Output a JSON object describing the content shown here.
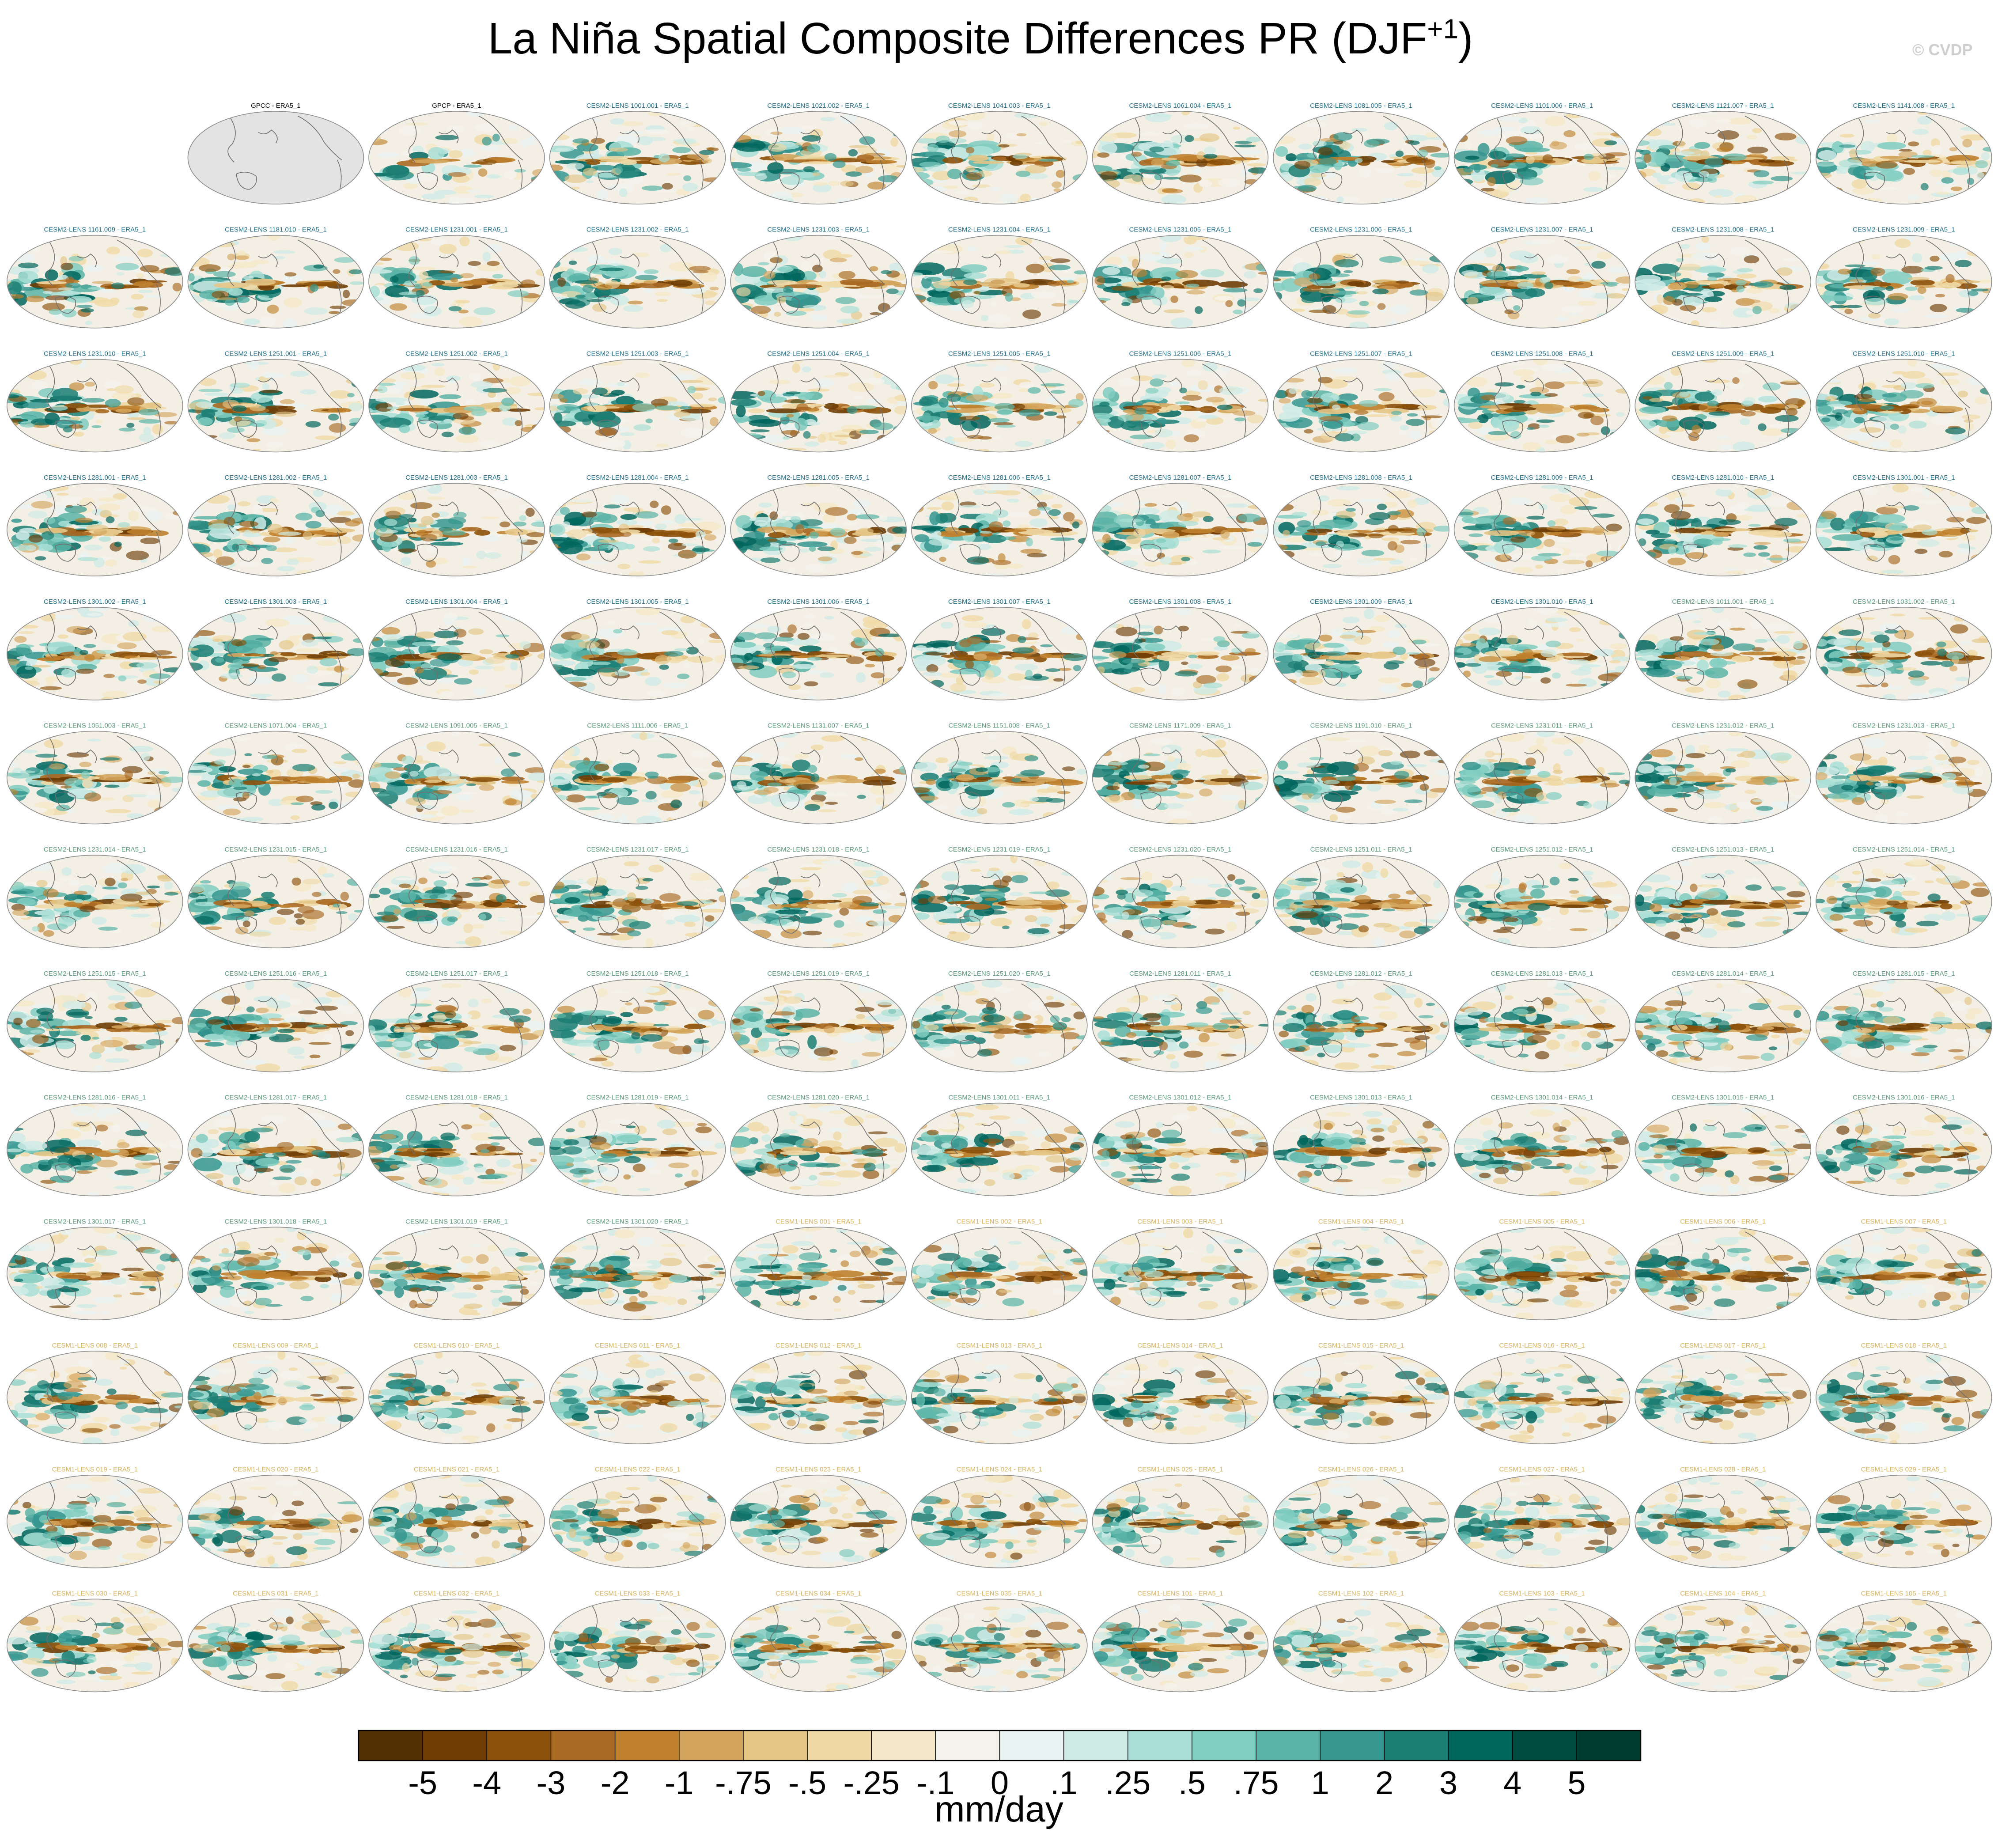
{
  "title": "La Niña Spatial Composite Differences PR (DJF",
  "title_sup": "+1",
  "title_close": ")",
  "watermark": "© CVDP",
  "colors": {
    "obs_label": "#000000",
    "cesm2_label": "#1f6f8b",
    "cesm2_smbb_label": "#5a9a7a",
    "cesm1_label": "#d8b25c",
    "land": "#f4efe4",
    "coast": "#6e6e6e"
  },
  "panels": [
    {
      "label": "",
      "kind": "empty"
    },
    {
      "label": "GPCC - ERA5_1",
      "kind": "obs-land"
    },
    {
      "label": "GPCP - ERA5_1",
      "kind": "obs"
    },
    {
      "label": "CESM2-LENS 1001.001 - ERA5_1",
      "kind": "cesm2"
    },
    {
      "label": "CESM2-LENS 1021.002 - ERA5_1",
      "kind": "cesm2"
    },
    {
      "label": "CESM2-LENS 1041.003 - ERA5_1",
      "kind": "cesm2"
    },
    {
      "label": "CESM2-LENS 1061.004 - ERA5_1",
      "kind": "cesm2"
    },
    {
      "label": "CESM2-LENS 1081.005 - ERA5_1",
      "kind": "cesm2"
    },
    {
      "label": "CESM2-LENS 1101.006 - ERA5_1",
      "kind": "cesm2"
    },
    {
      "label": "CESM2-LENS 1121.007 - ERA5_1",
      "kind": "cesm2"
    },
    {
      "label": "CESM2-LENS 1141.008 - ERA5_1",
      "kind": "cesm2"
    },
    {
      "label": "CESM2-LENS 1161.009 - ERA5_1",
      "kind": "cesm2"
    },
    {
      "label": "CESM2-LENS 1181.010 - ERA5_1",
      "kind": "cesm2"
    },
    {
      "label": "CESM2-LENS 1231.001 - ERA5_1",
      "kind": "cesm2"
    },
    {
      "label": "CESM2-LENS 1231.002 - ERA5_1",
      "kind": "cesm2"
    },
    {
      "label": "CESM2-LENS 1231.003 - ERA5_1",
      "kind": "cesm2"
    },
    {
      "label": "CESM2-LENS 1231.004 - ERA5_1",
      "kind": "cesm2"
    },
    {
      "label": "CESM2-LENS 1231.005 - ERA5_1",
      "kind": "cesm2"
    },
    {
      "label": "CESM2-LENS 1231.006 - ERA5_1",
      "kind": "cesm2"
    },
    {
      "label": "CESM2-LENS 1231.007 - ERA5_1",
      "kind": "cesm2"
    },
    {
      "label": "CESM2-LENS 1231.008 - ERA5_1",
      "kind": "cesm2"
    },
    {
      "label": "CESM2-LENS 1231.009 - ERA5_1",
      "kind": "cesm2"
    },
    {
      "label": "CESM2-LENS 1231.010 - ERA5_1",
      "kind": "cesm2"
    },
    {
      "label": "CESM2-LENS 1251.001 - ERA5_1",
      "kind": "cesm2"
    },
    {
      "label": "CESM2-LENS 1251.002 - ERA5_1",
      "kind": "cesm2"
    },
    {
      "label": "CESM2-LENS 1251.003 - ERA5_1",
      "kind": "cesm2"
    },
    {
      "label": "CESM2-LENS 1251.004 - ERA5_1",
      "kind": "cesm2"
    },
    {
      "label": "CESM2-LENS 1251.005 - ERA5_1",
      "kind": "cesm2"
    },
    {
      "label": "CESM2-LENS 1251.006 - ERA5_1",
      "kind": "cesm2"
    },
    {
      "label": "CESM2-LENS 1251.007 - ERA5_1",
      "kind": "cesm2"
    },
    {
      "label": "CESM2-LENS 1251.008 - ERA5_1",
      "kind": "cesm2"
    },
    {
      "label": "CESM2-LENS 1251.009 - ERA5_1",
      "kind": "cesm2"
    },
    {
      "label": "CESM2-LENS 1251.010 - ERA5_1",
      "kind": "cesm2"
    },
    {
      "label": "CESM2-LENS 1281.001 - ERA5_1",
      "kind": "cesm2"
    },
    {
      "label": "CESM2-LENS 1281.002 - ERA5_1",
      "kind": "cesm2"
    },
    {
      "label": "CESM2-LENS 1281.003 - ERA5_1",
      "kind": "cesm2"
    },
    {
      "label": "CESM2-LENS 1281.004 - ERA5_1",
      "kind": "cesm2"
    },
    {
      "label": "CESM2-LENS 1281.005 - ERA5_1",
      "kind": "cesm2"
    },
    {
      "label": "CESM2-LENS 1281.006 - ERA5_1",
      "kind": "cesm2"
    },
    {
      "label": "CESM2-LENS 1281.007 - ERA5_1",
      "kind": "cesm2"
    },
    {
      "label": "CESM2-LENS 1281.008 - ERA5_1",
      "kind": "cesm2"
    },
    {
      "label": "CESM2-LENS 1281.009 - ERA5_1",
      "kind": "cesm2"
    },
    {
      "label": "CESM2-LENS 1281.010 - ERA5_1",
      "kind": "cesm2"
    },
    {
      "label": "CESM2-LENS 1301.001 - ERA5_1",
      "kind": "cesm2"
    },
    {
      "label": "CESM2-LENS 1301.002 - ERA5_1",
      "kind": "cesm2"
    },
    {
      "label": "CESM2-LENS 1301.003 - ERA5_1",
      "kind": "cesm2"
    },
    {
      "label": "CESM2-LENS 1301.004 - ERA5_1",
      "kind": "cesm2"
    },
    {
      "label": "CESM2-LENS 1301.005 - ERA5_1",
      "kind": "cesm2"
    },
    {
      "label": "CESM2-LENS 1301.006 - ERA5_1",
      "kind": "cesm2"
    },
    {
      "label": "CESM2-LENS 1301.007 - ERA5_1",
      "kind": "cesm2"
    },
    {
      "label": "CESM2-LENS 1301.008 - ERA5_1",
      "kind": "cesm2"
    },
    {
      "label": "CESM2-LENS 1301.009 - ERA5_1",
      "kind": "cesm2"
    },
    {
      "label": "CESM2-LENS 1301.010 - ERA5_1",
      "kind": "cesm2"
    },
    {
      "label": "CESM2-LENS 1011.001 - ERA5_1",
      "kind": "cesm2-smbb"
    },
    {
      "label": "CESM2-LENS 1031.002 - ERA5_1",
      "kind": "cesm2-smbb"
    },
    {
      "label": "CESM2-LENS 1051.003 - ERA5_1",
      "kind": "cesm2-smbb"
    },
    {
      "label": "CESM2-LENS 1071.004 - ERA5_1",
      "kind": "cesm2-smbb"
    },
    {
      "label": "CESM2-LENS 1091.005 - ERA5_1",
      "kind": "cesm2-smbb"
    },
    {
      "label": "CESM2-LENS 1111.006 - ERA5_1",
      "kind": "cesm2-smbb"
    },
    {
      "label": "CESM2-LENS 1131.007 - ERA5_1",
      "kind": "cesm2-smbb"
    },
    {
      "label": "CESM2-LENS 1151.008 - ERA5_1",
      "kind": "cesm2-smbb"
    },
    {
      "label": "CESM2-LENS 1171.009 - ERA5_1",
      "kind": "cesm2-smbb"
    },
    {
      "label": "CESM2-LENS 1191.010 - ERA5_1",
      "kind": "cesm2-smbb"
    },
    {
      "label": "CESM2-LENS 1231.011 - ERA5_1",
      "kind": "cesm2-smbb"
    },
    {
      "label": "CESM2-LENS 1231.012 - ERA5_1",
      "kind": "cesm2-smbb"
    },
    {
      "label": "CESM2-LENS 1231.013 - ERA5_1",
      "kind": "cesm2-smbb"
    },
    {
      "label": "CESM2-LENS 1231.014 - ERA5_1",
      "kind": "cesm2-smbb"
    },
    {
      "label": "CESM2-LENS 1231.015 - ERA5_1",
      "kind": "cesm2-smbb"
    },
    {
      "label": "CESM2-LENS 1231.016 - ERA5_1",
      "kind": "cesm2-smbb"
    },
    {
      "label": "CESM2-LENS 1231.017 - ERA5_1",
      "kind": "cesm2-smbb"
    },
    {
      "label": "CESM2-LENS 1231.018 - ERA5_1",
      "kind": "cesm2-smbb"
    },
    {
      "label": "CESM2-LENS 1231.019 - ERA5_1",
      "kind": "cesm2-smbb"
    },
    {
      "label": "CESM2-LENS 1231.020 - ERA5_1",
      "kind": "cesm2-smbb"
    },
    {
      "label": "CESM2-LENS 1251.011 - ERA5_1",
      "kind": "cesm2-smbb"
    },
    {
      "label": "CESM2-LENS 1251.012 - ERA5_1",
      "kind": "cesm2-smbb"
    },
    {
      "label": "CESM2-LENS 1251.013 - ERA5_1",
      "kind": "cesm2-smbb"
    },
    {
      "label": "CESM2-LENS 1251.014 - ERA5_1",
      "kind": "cesm2-smbb"
    },
    {
      "label": "CESM2-LENS 1251.015 - ERA5_1",
      "kind": "cesm2-smbb"
    },
    {
      "label": "CESM2-LENS 1251.016 - ERA5_1",
      "kind": "cesm2-smbb"
    },
    {
      "label": "CESM2-LENS 1251.017 - ERA5_1",
      "kind": "cesm2-smbb"
    },
    {
      "label": "CESM2-LENS 1251.018 - ERA5_1",
      "kind": "cesm2-smbb"
    },
    {
      "label": "CESM2-LENS 1251.019 - ERA5_1",
      "kind": "cesm2-smbb"
    },
    {
      "label": "CESM2-LENS 1251.020 - ERA5_1",
      "kind": "cesm2-smbb"
    },
    {
      "label": "CESM2-LENS 1281.011 - ERA5_1",
      "kind": "cesm2-smbb"
    },
    {
      "label": "CESM2-LENS 1281.012 - ERA5_1",
      "kind": "cesm2-smbb"
    },
    {
      "label": "CESM2-LENS 1281.013 - ERA5_1",
      "kind": "cesm2-smbb"
    },
    {
      "label": "CESM2-LENS 1281.014 - ERA5_1",
      "kind": "cesm2-smbb"
    },
    {
      "label": "CESM2-LENS 1281.015 - ERA5_1",
      "kind": "cesm2-smbb"
    },
    {
      "label": "CESM2-LENS 1281.016 - ERA5_1",
      "kind": "cesm2-smbb"
    },
    {
      "label": "CESM2-LENS 1281.017 - ERA5_1",
      "kind": "cesm2-smbb"
    },
    {
      "label": "CESM2-LENS 1281.018 - ERA5_1",
      "kind": "cesm2-smbb"
    },
    {
      "label": "CESM2-LENS 1281.019 - ERA5_1",
      "kind": "cesm2-smbb"
    },
    {
      "label": "CESM2-LENS 1281.020 - ERA5_1",
      "kind": "cesm2-smbb"
    },
    {
      "label": "CESM2-LENS 1301.011 - ERA5_1",
      "kind": "cesm2-smbb"
    },
    {
      "label": "CESM2-LENS 1301.012 - ERA5_1",
      "kind": "cesm2-smbb"
    },
    {
      "label": "CESM2-LENS 1301.013 - ERA5_1",
      "kind": "cesm2-smbb"
    },
    {
      "label": "CESM2-LENS 1301.014 - ERA5_1",
      "kind": "cesm2-smbb"
    },
    {
      "label": "CESM2-LENS 1301.015 - ERA5_1",
      "kind": "cesm2-smbb"
    },
    {
      "label": "CESM2-LENS 1301.016 - ERA5_1",
      "kind": "cesm2-smbb"
    },
    {
      "label": "CESM2-LENS 1301.017 - ERA5_1",
      "kind": "cesm2-smbb"
    },
    {
      "label": "CESM2-LENS 1301.018 - ERA5_1",
      "kind": "cesm2-smbb"
    },
    {
      "label": "CESM2-LENS 1301.019 - ERA5_1",
      "kind": "cesm2-smbb"
    },
    {
      "label": "CESM2-LENS 1301.020 - ERA5_1",
      "kind": "cesm2-smbb"
    },
    {
      "label": "CESM1-LENS 001 - ERA5_1",
      "kind": "cesm1"
    },
    {
      "label": "CESM1-LENS 002 - ERA5_1",
      "kind": "cesm1"
    },
    {
      "label": "CESM1-LENS 003 - ERA5_1",
      "kind": "cesm1"
    },
    {
      "label": "CESM1-LENS 004 - ERA5_1",
      "kind": "cesm1"
    },
    {
      "label": "CESM1-LENS 005 - ERA5_1",
      "kind": "cesm1"
    },
    {
      "label": "CESM1-LENS 006 - ERA5_1",
      "kind": "cesm1"
    },
    {
      "label": "CESM1-LENS 007 - ERA5_1",
      "kind": "cesm1"
    },
    {
      "label": "CESM1-LENS 008 - ERA5_1",
      "kind": "cesm1"
    },
    {
      "label": "CESM1-LENS 009 - ERA5_1",
      "kind": "cesm1"
    },
    {
      "label": "CESM1-LENS 010 - ERA5_1",
      "kind": "cesm1"
    },
    {
      "label": "CESM1-LENS 011 - ERA5_1",
      "kind": "cesm1"
    },
    {
      "label": "CESM1-LENS 012 - ERA5_1",
      "kind": "cesm1"
    },
    {
      "label": "CESM1-LENS 013 - ERA5_1",
      "kind": "cesm1"
    },
    {
      "label": "CESM1-LENS 014 - ERA5_1",
      "kind": "cesm1"
    },
    {
      "label": "CESM1-LENS 015 - ERA5_1",
      "kind": "cesm1"
    },
    {
      "label": "CESM1-LENS 016 - ERA5_1",
      "kind": "cesm1"
    },
    {
      "label": "CESM1-LENS 017 - ERA5_1",
      "kind": "cesm1"
    },
    {
      "label": "CESM1-LENS 018 - ERA5_1",
      "kind": "cesm1"
    },
    {
      "label": "CESM1-LENS 019 - ERA5_1",
      "kind": "cesm1"
    },
    {
      "label": "CESM1-LENS 020 - ERA5_1",
      "kind": "cesm1"
    },
    {
      "label": "CESM1-LENS 021 - ERA5_1",
      "kind": "cesm1"
    },
    {
      "label": "CESM1-LENS 022 - ERA5_1",
      "kind": "cesm1"
    },
    {
      "label": "CESM1-LENS 023 - ERA5_1",
      "kind": "cesm1"
    },
    {
      "label": "CESM1-LENS 024 - ERA5_1",
      "kind": "cesm1"
    },
    {
      "label": "CESM1-LENS 025 - ERA5_1",
      "kind": "cesm1"
    },
    {
      "label": "CESM1-LENS 026 - ERA5_1",
      "kind": "cesm1"
    },
    {
      "label": "CESM1-LENS 027 - ERA5_1",
      "kind": "cesm1"
    },
    {
      "label": "CESM1-LENS 028 - ERA5_1",
      "kind": "cesm1"
    },
    {
      "label": "CESM1-LENS 029 - ERA5_1",
      "kind": "cesm1"
    },
    {
      "label": "CESM1-LENS 030 - ERA5_1",
      "kind": "cesm1"
    },
    {
      "label": "CESM1-LENS 031 - ERA5_1",
      "kind": "cesm1"
    },
    {
      "label": "CESM1-LENS 032 - ERA5_1",
      "kind": "cesm1"
    },
    {
      "label": "CESM1-LENS 033 - ERA5_1",
      "kind": "cesm1"
    },
    {
      "label": "CESM1-LENS 034 - ERA5_1",
      "kind": "cesm1"
    },
    {
      "label": "CESM1-LENS 035 - ERA5_1",
      "kind": "cesm1"
    },
    {
      "label": "CESM1-LENS 101 - ERA5_1",
      "kind": "cesm1"
    },
    {
      "label": "CESM1-LENS 102 - ERA5_1",
      "kind": "cesm1"
    },
    {
      "label": "CESM1-LENS 103 - ERA5_1",
      "kind": "cesm1"
    },
    {
      "label": "CESM1-LENS 104 - ERA5_1",
      "kind": "cesm1"
    },
    {
      "label": "CESM1-LENS 105 - ERA5_1",
      "kind": "cesm1"
    }
  ],
  "chart_data": {
    "type": "heatmap",
    "title": "La Niña Spatial Composite Differences PR (DJF+1)",
    "layout": "13 rows x 11 columns of global map panels",
    "colorbar": {
      "label": "mm/day",
      "ticks": [
        "-5",
        "-4",
        "-3",
        "-2",
        "-1",
        "-.75",
        "-.5",
        "-.25",
        "-.1",
        "0",
        ".1",
        ".25",
        ".5",
        ".75",
        "1",
        "2",
        "3",
        "4",
        "5"
      ],
      "levels": [
        -5,
        -4,
        -3,
        -2,
        -1,
        -0.75,
        -0.5,
        -0.25,
        -0.1,
        0,
        0.1,
        0.25,
        0.5,
        0.75,
        1,
        2,
        3,
        4,
        5
      ],
      "colors": [
        "#543005",
        "#6f3e07",
        "#8c510a",
        "#a86923",
        "#bf812d",
        "#d4a55d",
        "#e4c586",
        "#f0d9a6",
        "#f5e8c8",
        "#f5f3ee",
        "#e9f3f1",
        "#cfebe6",
        "#a9dfd6",
        "#80cdc1",
        "#5ab4a7",
        "#35978f",
        "#1b7e73",
        "#01665e",
        "#014c41",
        "#003c30"
      ]
    }
  }
}
